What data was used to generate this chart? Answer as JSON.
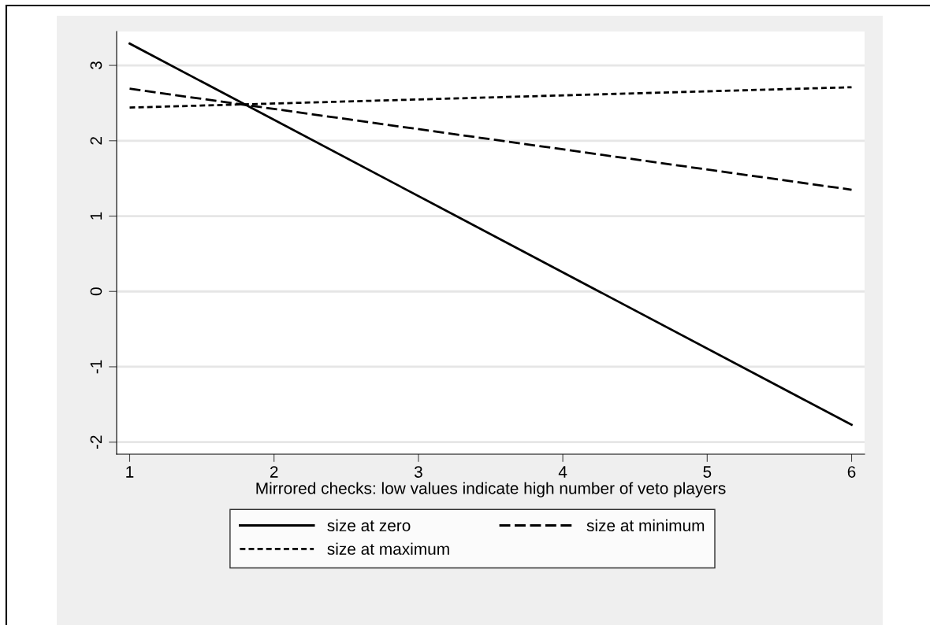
{
  "chart_data": {
    "type": "line",
    "xlabel": "Mirrored checks: low values indicate high number of veto players",
    "x": [
      1,
      6
    ],
    "series": [
      {
        "name": "size at zero",
        "color": "#000000",
        "line_style": "solid",
        "values": [
          3.29,
          -1.77
        ]
      },
      {
        "name": "size at minimum",
        "color": "#000000",
        "line_style": "dashed",
        "values": [
          2.69,
          1.35
        ]
      },
      {
        "name": "size at maximum",
        "color": "#000000",
        "line_style": "dotted",
        "values": [
          2.44,
          2.71
        ]
      }
    ],
    "xlim": [
      0.91,
      6.09
    ],
    "xticks": [
      1,
      2,
      3,
      4,
      5,
      6
    ],
    "ylim": [
      -2.16,
      3.45
    ],
    "yticks": [
      {
        "value": -2,
        "label": "-2"
      },
      {
        "value": -1,
        "label": "-1"
      },
      0,
      1,
      2,
      3
    ],
    "grid": "y",
    "legend": "bottom",
    "marker": "none"
  }
}
